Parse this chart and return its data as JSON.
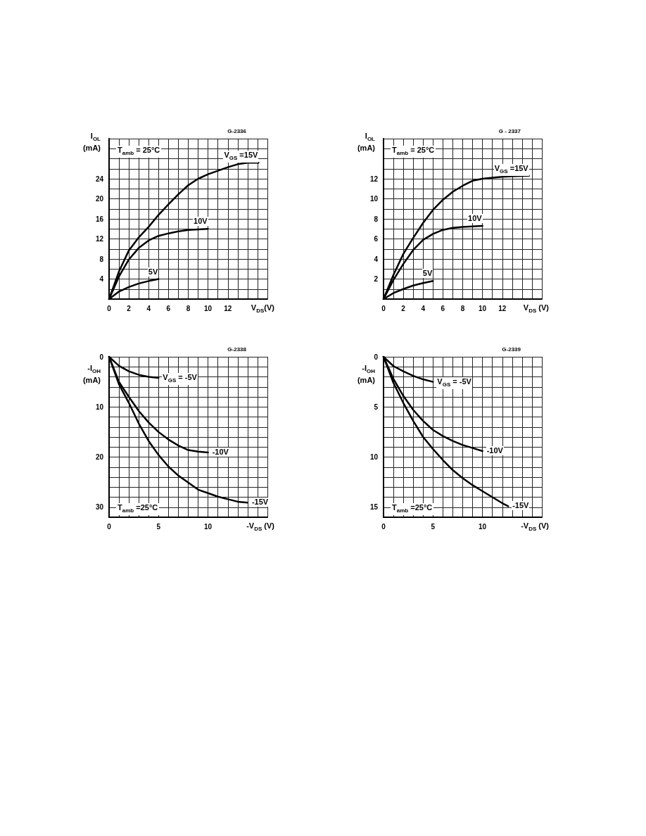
{
  "chart_data": [
    {
      "type": "line",
      "grid": true,
      "xlabel": "V$_{DS}$(V)",
      "ylabel": "I$_{OL}$\n(mA)",
      "annotations": [
        "T$_{amb}$ = 25°C",
        "G-2336"
      ],
      "xlim": [
        0,
        16
      ],
      "ylim": [
        0,
        32
      ],
      "xticks": [
        0,
        {
          "value": 1,
          "label": null
        },
        2,
        {
          "value": 3,
          "label": null
        },
        4,
        {
          "value": 5,
          "label": null
        },
        6,
        {
          "value": 7,
          "label": null
        },
        8,
        {
          "value": 9,
          "label": null
        },
        10,
        {
          "value": 11,
          "label": null
        },
        12,
        {
          "value": 13,
          "label": null
        },
        {
          "value": 14,
          "label": null
        },
        {
          "value": 15,
          "label": null
        },
        {
          "value": 16,
          "label": null
        }
      ],
      "yticks": [
        {
          "value": 0,
          "label": null
        },
        {
          "value": 2,
          "label": null
        },
        4,
        {
          "value": 6,
          "label": null
        },
        8,
        {
          "value": 10,
          "label": null
        },
        12,
        {
          "value": 14,
          "label": null
        },
        16,
        {
          "value": 18,
          "label": null
        },
        20,
        {
          "value": 22,
          "label": null
        },
        24,
        {
          "value": 26,
          "label": null
        },
        {
          "value": 28,
          "label": null
        },
        {
          "value": 30,
          "label": null
        },
        {
          "value": 32,
          "label": null
        }
      ],
      "series": [
        {
          "name": "V$_{GS}$ =15V",
          "color": "#000000",
          "x": [
            0,
            1,
            2,
            3,
            4,
            5,
            6,
            7,
            8,
            9,
            10,
            11,
            12,
            13,
            14,
            15.1
          ],
          "values": [
            0,
            5.5,
            9.7,
            12.3,
            14.4,
            16.8,
            18.9,
            20.9,
            22.7,
            24,
            24.9,
            25.6,
            26.3,
            26.9,
            27.2,
            27.2
          ]
        },
        {
          "name": "10V",
          "color": "#000000",
          "x": [
            0,
            1,
            2,
            3,
            4,
            5,
            6,
            7,
            8,
            9,
            10
          ],
          "values": [
            0,
            4.5,
            7.9,
            10.2,
            11.7,
            12.6,
            13.1,
            13.5,
            13.8,
            13.9,
            14
          ]
        },
        {
          "name": "5V",
          "color": "#000000",
          "x": [
            0,
            1,
            2,
            3,
            4,
            5
          ],
          "values": [
            0,
            1.5,
            2.4,
            3.1,
            3.6,
            4
          ]
        }
      ]
    },
    {
      "type": "line",
      "grid": true,
      "xlabel": "V$_{DS}$ (V)",
      "ylabel": "I$_{OL}$\n(mA)",
      "annotations": [
        "T$_{amb}$ = 25°C",
        "G - 2337"
      ],
      "xlim": [
        0,
        16
      ],
      "ylim": [
        0,
        16
      ],
      "xticks": [
        0,
        {
          "value": 1,
          "label": null
        },
        2,
        {
          "value": 3,
          "label": null
        },
        4,
        {
          "value": 5,
          "label": null
        },
        6,
        {
          "value": 7,
          "label": null
        },
        8,
        {
          "value": 9,
          "label": null
        },
        10,
        {
          "value": 11,
          "label": null
        },
        12,
        {
          "value": 13,
          "label": null
        },
        {
          "value": 14,
          "label": null
        },
        {
          "value": 15,
          "label": null
        },
        {
          "value": 16,
          "label": null
        }
      ],
      "yticks": [
        {
          "value": 0,
          "label": null
        },
        {
          "value": 1,
          "label": null
        },
        2,
        {
          "value": 3,
          "label": null
        },
        4,
        {
          "value": 5,
          "label": null
        },
        6,
        {
          "value": 7,
          "label": null
        },
        8,
        {
          "value": 9,
          "label": null
        },
        10,
        {
          "value": 11,
          "label": null
        },
        12,
        {
          "value": 13,
          "label": null
        },
        {
          "value": 14,
          "label": null
        },
        {
          "value": 15,
          "label": null
        },
        {
          "value": 16,
          "label": null
        }
      ],
      "series": [
        {
          "name": "V$_{GS}$ =15V",
          "color": "#000000",
          "x": [
            0,
            1,
            2,
            3,
            4,
            5,
            6,
            7,
            8,
            9,
            10,
            11,
            12,
            13,
            14.7
          ],
          "values": [
            0,
            2.4,
            4.5,
            6.1,
            7.6,
            8.9,
            9.9,
            10.7,
            11.3,
            11.8,
            12,
            12.1,
            12.2,
            12.25,
            12.3
          ]
        },
        {
          "name": "10V",
          "color": "#000000",
          "x": [
            0,
            1,
            2,
            3,
            4,
            5,
            6,
            7,
            8,
            9,
            10
          ],
          "values": [
            0,
            1.9,
            3.5,
            4.9,
            5.9,
            6.5,
            6.9,
            7.1,
            7.2,
            7.25,
            7.3
          ]
        },
        {
          "name": "5V",
          "color": "#000000",
          "x": [
            0,
            1,
            2,
            3,
            4,
            5
          ],
          "values": [
            0,
            0.6,
            1,
            1.35,
            1.6,
            1.8
          ]
        }
      ]
    },
    {
      "type": "line",
      "grid": true,
      "xlabel": "-V$_{DS}$  (V)",
      "ylabel": "-I$_{OH}$\n(mA)",
      "annotations": [
        "T$_{amb}$ =25°C",
        "G-2338"
      ],
      "xlim": [
        0,
        16
      ],
      "ylim": [
        32,
        0
      ],
      "xticks": [
        0,
        {
          "value": 1,
          "label": null
        },
        {
          "value": 2,
          "label": null
        },
        {
          "value": 3,
          "label": null
        },
        {
          "value": 4,
          "label": null
        },
        5,
        {
          "value": 6,
          "label": null
        },
        {
          "value": 7,
          "label": null
        },
        {
          "value": 8,
          "label": null
        },
        {
          "value": 9,
          "label": null
        },
        10,
        {
          "value": 11,
          "label": null
        },
        {
          "value": 12,
          "label": null
        },
        {
          "value": 13,
          "label": null
        },
        {
          "value": 14,
          "label": null
        },
        {
          "value": 15,
          "label": null
        },
        {
          "value": 16,
          "label": null
        }
      ],
      "yticks": [
        0,
        {
          "value": 2,
          "label": null
        },
        {
          "value": 4,
          "label": null
        },
        {
          "value": 6,
          "label": null
        },
        {
          "value": 8,
          "label": null
        },
        10,
        {
          "value": 12,
          "label": null
        },
        {
          "value": 14,
          "label": null
        },
        {
          "value": 16,
          "label": null
        },
        {
          "value": 18,
          "label": null
        },
        20,
        {
          "value": 22,
          "label": null
        },
        {
          "value": 24,
          "label": null
        },
        {
          "value": 26,
          "label": null
        },
        {
          "value": 28,
          "label": null
        },
        30,
        {
          "value": 32,
          "label": null
        }
      ],
      "series": [
        {
          "name": "V$_{GS}$ = -5V",
          "color": "#000000",
          "x": [
            0,
            1,
            2,
            3,
            4,
            5
          ],
          "values": [
            0,
            1.8,
            2.9,
            3.6,
            4,
            4.2
          ]
        },
        {
          "name": "-10V",
          "color": "#000000",
          "x": [
            0,
            1,
            2,
            3,
            4,
            5,
            6,
            7,
            8,
            9,
            10
          ],
          "values": [
            0,
            5,
            8,
            10.8,
            13.1,
            15,
            16.5,
            17.7,
            18.6,
            18.9,
            19.1
          ]
        },
        {
          "name": "-15V",
          "color": "#000000",
          "x": [
            0,
            1,
            2,
            3,
            4,
            5,
            6,
            7,
            8,
            9,
            10,
            11,
            12,
            13,
            14
          ],
          "values": [
            0,
            5.5,
            9.2,
            13.3,
            16.8,
            19.6,
            21.9,
            23.7,
            25.1,
            26.5,
            27.2,
            27.9,
            28.4,
            28.9,
            29.1
          ]
        }
      ]
    },
    {
      "type": "line",
      "grid": true,
      "xlabel": "-V$_{DS}$  (V)",
      "ylabel": "-I$_{OH}$\n(mA)",
      "annotations": [
        "T$_{amb}$ =25°C",
        "G-2339"
      ],
      "xlim": [
        0,
        16
      ],
      "ylim": [
        16,
        0
      ],
      "xticks": [
        0,
        {
          "value": 1,
          "label": null
        },
        {
          "value": 2,
          "label": null
        },
        {
          "value": 3,
          "label": null
        },
        {
          "value": 4,
          "label": null
        },
        5,
        {
          "value": 6,
          "label": null
        },
        {
          "value": 7,
          "label": null
        },
        {
          "value": 8,
          "label": null
        },
        {
          "value": 9,
          "label": null
        },
        10,
        {
          "value": 11,
          "label": null
        },
        {
          "value": 12,
          "label": null
        },
        {
          "value": 13,
          "label": null
        },
        {
          "value": 14,
          "label": null
        },
        {
          "value": 15,
          "label": null
        },
        {
          "value": 16,
          "label": null
        }
      ],
      "yticks": [
        0,
        {
          "value": 1,
          "label": null
        },
        {
          "value": 2,
          "label": null
        },
        {
          "value": 3,
          "label": null
        },
        {
          "value": 4,
          "label": null
        },
        5,
        {
          "value": 6,
          "label": null
        },
        {
          "value": 7,
          "label": null
        },
        {
          "value": 8,
          "label": null
        },
        {
          "value": 9,
          "label": null
        },
        10,
        {
          "value": 11,
          "label": null
        },
        {
          "value": 12,
          "label": null
        },
        {
          "value": 13,
          "label": null
        },
        {
          "value": 14,
          "label": null
        },
        15,
        {
          "value": 16,
          "label": null
        }
      ],
      "series": [
        {
          "name": "V$_{GS}$ = -5V",
          "color": "#000000",
          "x": [
            0,
            1,
            2,
            3,
            4,
            5
          ],
          "values": [
            0,
            0.93,
            1.45,
            1.9,
            2.25,
            2.5
          ]
        },
        {
          "name": "-10V",
          "color": "#000000",
          "x": [
            0,
            1,
            2,
            3,
            4,
            5,
            6,
            7,
            8,
            9,
            10
          ],
          "values": [
            0,
            2.2,
            3.9,
            5.3,
            6.4,
            7.3,
            7.9,
            8.4,
            8.8,
            9.1,
            9.4
          ]
        },
        {
          "name": "-15V",
          "color": "#000000",
          "x": [
            0,
            1,
            2,
            3,
            4,
            5,
            6,
            7,
            8,
            9,
            10,
            11,
            12,
            12.6
          ],
          "values": [
            0,
            2.6,
            4.6,
            6.4,
            8,
            9.2,
            10.3,
            11.3,
            12.1,
            12.8,
            13.4,
            14,
            14.6,
            14.9
          ]
        }
      ]
    }
  ]
}
